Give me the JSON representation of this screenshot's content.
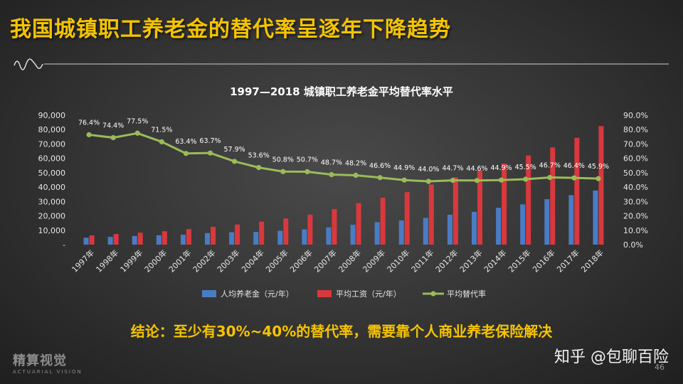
{
  "headline": "我国城镇职工养老金的替代率呈逐年下降趋势",
  "conclusion": "结论：至少有30%~40%的替代率，需要靠个人商业养老保险解决",
  "watermark": "知乎 @包聊百险",
  "slide_number": "46",
  "logo": {
    "main": "精算视觉",
    "sub": "ACTUARIAL VISION"
  },
  "colors": {
    "headline": "#f5c400",
    "pension_bar": "#4a7cc4",
    "wage_bar": "#d9383d",
    "rate_line": "#9bbb59"
  },
  "chart_data": {
    "type": "bar",
    "title": "1997—2018 城镇职工养老金平均替代率水平",
    "categories": [
      "1997年",
      "1998年",
      "1999年",
      "2000年",
      "2001年",
      "2002年",
      "2003年",
      "2004年",
      "2005年",
      "2006年",
      "2007年",
      "2008年",
      "2009年",
      "2010年",
      "2011年",
      "2012年",
      "2013年",
      "2014年",
      "2015年",
      "2016年",
      "2017年",
      "2018年"
    ],
    "y_left": {
      "min": 0,
      "max": 90000,
      "ticks": [
        "-",
        "10,000",
        "20,000",
        "30,000",
        "40,000",
        "50,000",
        "60,000",
        "70,000",
        "80,000",
        "90,000"
      ]
    },
    "y_right": {
      "min": 0,
      "max": 90,
      "ticks": [
        "0.0%",
        "10.0%",
        "20.0%",
        "30.0%",
        "40.0%",
        "50.0%",
        "60.0%",
        "70.0%",
        "80.0%",
        "90.0%"
      ]
    },
    "series": [
      {
        "name": "人均养老金（元/年）",
        "type": "bar",
        "axis": "left",
        "values": [
          4800,
          5400,
          6000,
          6500,
          6900,
          8000,
          8600,
          8800,
          9600,
          10600,
          12000,
          13800,
          15600,
          16800,
          18600,
          20800,
          22800,
          25600,
          28000,
          31600,
          34400,
          37600
        ]
      },
      {
        "name": "平均工资（元/年）",
        "type": "bar",
        "axis": "left",
        "values": [
          6400,
          7400,
          8300,
          9300,
          10800,
          12400,
          14000,
          16000,
          18200,
          20900,
          24700,
          28800,
          32600,
          36500,
          41800,
          46800,
          51500,
          56400,
          62000,
          67600,
          74300,
          82400
        ]
      },
      {
        "name": "平均替代率",
        "type": "line",
        "axis": "right",
        "values": [
          76.4,
          74.4,
          77.5,
          71.5,
          63.4,
          63.7,
          57.9,
          53.6,
          50.8,
          50.7,
          48.7,
          48.2,
          46.6,
          44.9,
          44.0,
          44.7,
          44.6,
          44.9,
          45.5,
          46.7,
          46.4,
          45.9
        ],
        "labels": [
          "76.4%",
          "74.4%",
          "77.5%",
          "71.5%",
          "63.4%",
          "63.7%",
          "57.9%",
          "53.6%",
          "50.8%",
          "50.7%",
          "48.7%",
          "48.2%",
          "46.6%",
          "44.9%",
          "44.0%",
          "44.7%",
          "44.6%",
          "44.9%",
          "45.5%",
          "46.7%",
          "46.4%",
          "45.9%"
        ]
      }
    ],
    "legend_position": "bottom",
    "grid": false
  }
}
